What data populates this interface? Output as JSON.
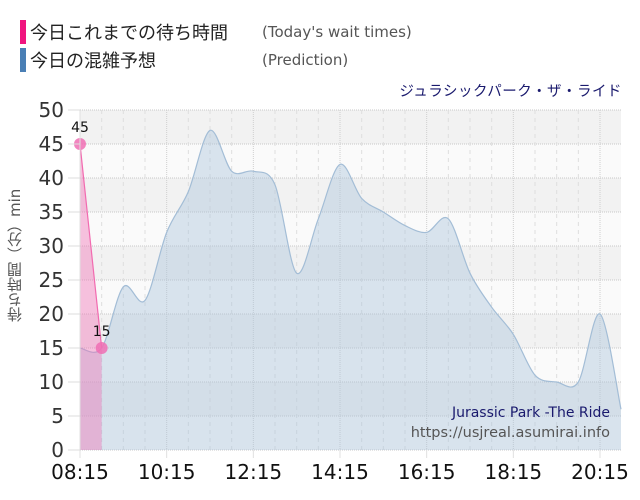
{
  "legend": {
    "items": [
      {
        "label_jp": "今日これまでの待ち時間",
        "label_en": "(Today's wait times)",
        "color": "#f0157f"
      },
      {
        "label_jp": "今日の混雑予想",
        "label_en": "(Prediction)",
        "color": "#4a7fb5"
      }
    ]
  },
  "ride_title": "ジュラシックパーク・ザ・ライド",
  "watermark": {
    "name": "Jurassic Park -The Ride",
    "url": "https://usjreal.asumirai.info"
  },
  "chart_data": {
    "type": "area",
    "title": "ジュラシックパーク・ザ・ライド",
    "xlabel": "",
    "ylabel": "待ち時間（分）min",
    "ylim": [
      0,
      50
    ],
    "yticks": [
      0,
      5,
      10,
      15,
      20,
      25,
      30,
      35,
      40,
      45,
      50
    ],
    "xticks": [
      "08:15",
      "10:15",
      "12:15",
      "14:15",
      "16:15",
      "18:15",
      "20:15"
    ],
    "grid": true,
    "legend_position": "top-left",
    "series": [
      {
        "name": "今日これまでの待ち時間 (Today's wait times)",
        "color": "#f0157f",
        "x": [
          "08:15",
          "08:45"
        ],
        "values": [
          45,
          15
        ],
        "point_labels": [
          "45",
          "15"
        ]
      },
      {
        "name": "今日の混雑予想 (Prediction)",
        "color": "#a9c3db",
        "x": [
          "08:15",
          "08:45",
          "09:15",
          "09:45",
          "10:15",
          "10:45",
          "11:15",
          "11:45",
          "12:15",
          "12:45",
          "13:15",
          "13:45",
          "14:15",
          "14:45",
          "15:15",
          "15:45",
          "16:15",
          "16:45",
          "17:15",
          "17:45",
          "18:15",
          "18:45",
          "19:15",
          "19:45",
          "20:15",
          "20:45"
        ],
        "values": [
          15,
          15,
          24,
          22,
          32,
          38,
          47,
          41,
          41,
          39,
          26,
          34,
          42,
          37,
          35,
          33,
          32,
          34,
          26,
          21,
          17,
          11,
          10,
          10,
          20,
          6
        ]
      }
    ]
  }
}
